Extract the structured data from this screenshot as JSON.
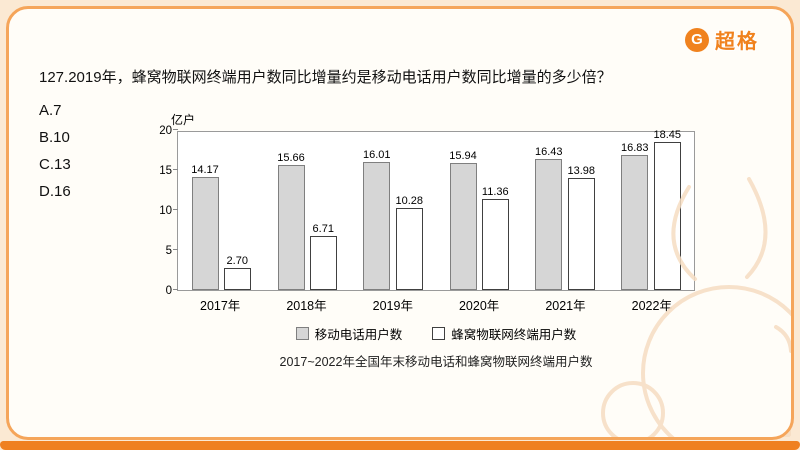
{
  "logo": {
    "brand": "超格",
    "icon": "G"
  },
  "question": {
    "text": "127.2019年，蜂窝物联网终端用户数同比增量约是移动电话用户数同比增量的多少倍？",
    "options": [
      "A.7",
      "B.10",
      "C.13",
      "D.16"
    ]
  },
  "chart_data": {
    "type": "bar",
    "categories": [
      "2017年",
      "2018年",
      "2019年",
      "2020年",
      "2021年",
      "2022年"
    ],
    "series": [
      {
        "name": "移动电话用户数",
        "values": [
          14.17,
          15.66,
          16.01,
          15.94,
          16.43,
          16.83
        ],
        "fill": "#d6d6d6"
      },
      {
        "name": "蜂窝物联网终端用户数",
        "values": [
          2.7,
          6.71,
          10.28,
          11.36,
          13.98,
          18.45
        ],
        "fill": "#ffffff"
      }
    ],
    "title": "2017~2022年全国年末移动电话和蜂窝物联网终端用户数",
    "xlabel": "",
    "ylabel": "亿户",
    "ylim": [
      0,
      20
    ],
    "yticks": [
      0,
      5,
      10,
      15,
      20
    ],
    "grid": false,
    "legend_position": "bottom"
  },
  "colors": {
    "accent_orange": "#f0821e",
    "frame_orange": "#f5a55a",
    "bar_gray": "#d6d6d6",
    "bar_white_border": "#404040"
  }
}
